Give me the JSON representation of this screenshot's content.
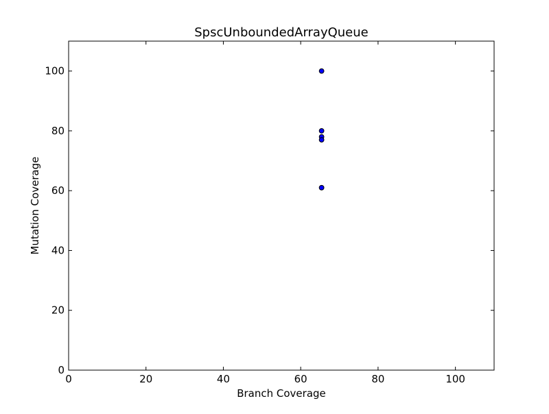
{
  "chart_data": {
    "type": "scatter",
    "title": "SpscUnboundedArrayQueue",
    "xlabel": "Branch Coverage",
    "ylabel": "Mutation Coverage",
    "xlim": [
      0,
      110
    ],
    "ylim": [
      0,
      110
    ],
    "x_ticks": [
      0,
      20,
      40,
      60,
      80,
      100
    ],
    "y_ticks": [
      0,
      20,
      40,
      60,
      80,
      100
    ],
    "x_tick_labels": [
      "0",
      "20",
      "40",
      "60",
      "80",
      "100"
    ],
    "y_tick_labels": [
      "0",
      "20",
      "40",
      "60",
      "80",
      "100"
    ],
    "grid": false,
    "marker_color": "#0000ff",
    "marker_edge_color": "#000000",
    "points": [
      {
        "x": 65.4,
        "y": 100
      },
      {
        "x": 65.4,
        "y": 80
      },
      {
        "x": 65.4,
        "y": 78
      },
      {
        "x": 65.4,
        "y": 77
      },
      {
        "x": 65.4,
        "y": 61
      }
    ]
  }
}
